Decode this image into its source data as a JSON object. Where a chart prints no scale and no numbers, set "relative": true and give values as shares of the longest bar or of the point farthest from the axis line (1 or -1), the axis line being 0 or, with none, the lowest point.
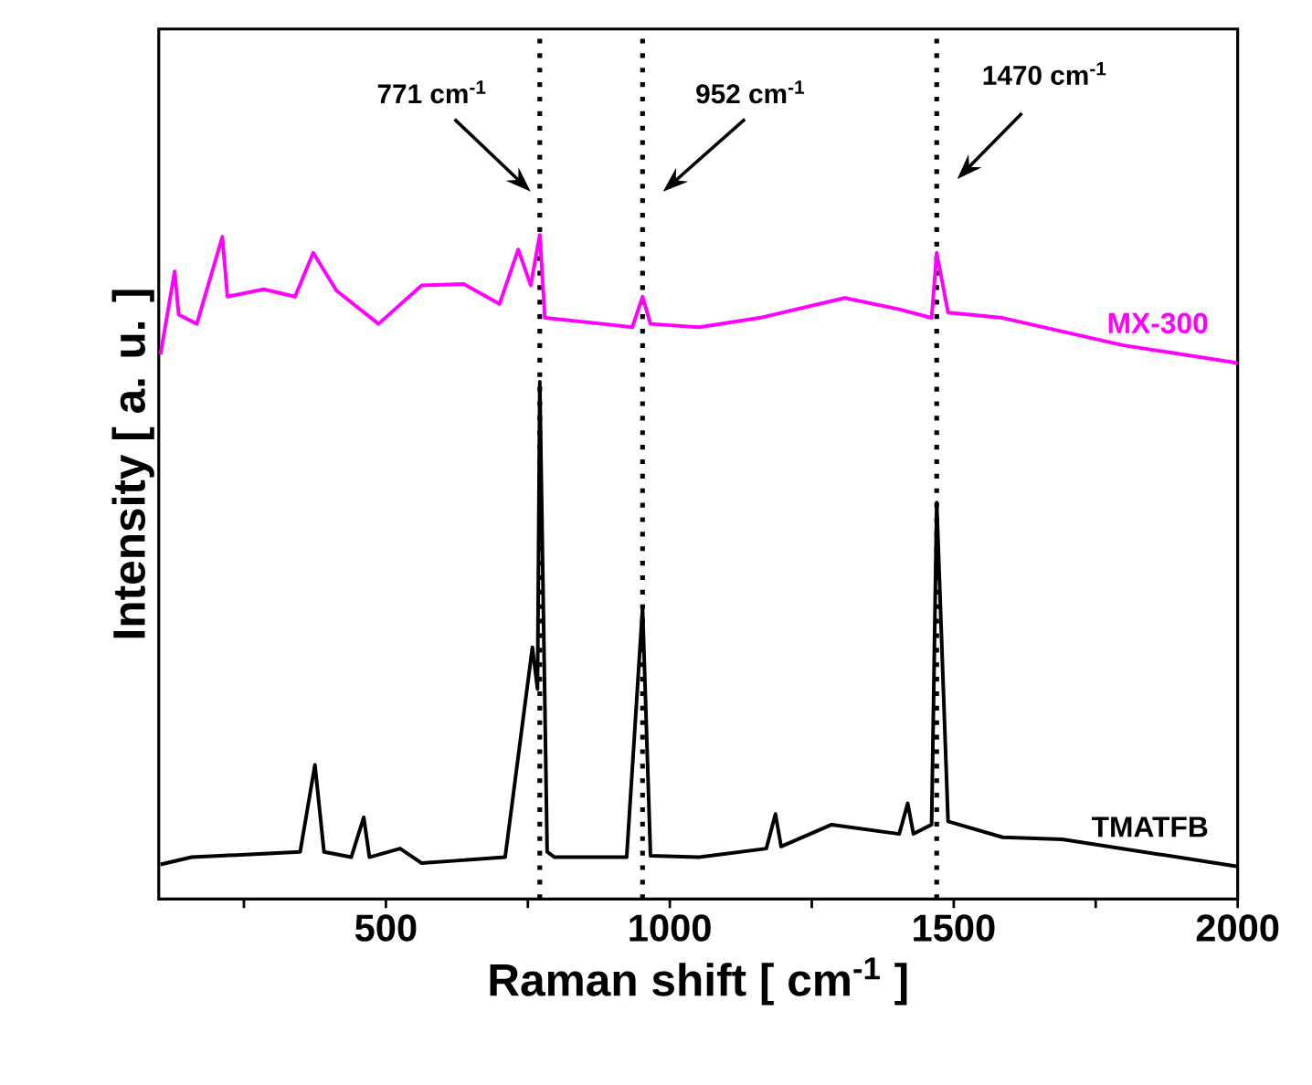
{
  "chart_data": {
    "type": "line",
    "relative": true,
    "xlabel": "Raman shift [ cm$^{-1}$ ]",
    "ylabel": "Intensity [ a. u. ]",
    "xlim": [
      100,
      2000
    ],
    "xticks": [
      {
        "value": 250,
        "label": null
      },
      500,
      {
        "value": 750,
        "label": null
      },
      1000,
      {
        "value": 1250,
        "label": null
      },
      1500,
      {
        "value": 1750,
        "label": null
      },
      2000
    ],
    "ref_lines": [
      {
        "axis": "x",
        "value": 771,
        "label": "771 cm$^{-1}$",
        "line_style": "dotted"
      },
      {
        "axis": "x",
        "value": 952,
        "label": "952 cm$^{-1}$",
        "line_style": "dotted"
      },
      {
        "axis": "x",
        "value": 1470,
        "label": "1470 cm$^{-1}$",
        "line_style": "dotted"
      }
    ],
    "series": [
      {
        "name": "MX-300",
        "color": "#ff00ff",
        "x": [
          103,
          128,
          135,
          167,
          212,
          221,
          285,
          340,
          372,
          413,
          487,
          563,
          637,
          700,
          733,
          755,
          771,
          780,
          882,
          934,
          952,
          966,
          1052,
          1158,
          1308,
          1404,
          1461,
          1470,
          1490,
          1586,
          1797,
          2000
        ],
        "values": [
          0.82,
          0.945,
          0.88,
          0.866,
          0.997,
          0.907,
          0.918,
          0.907,
          0.973,
          0.916,
          0.866,
          0.924,
          0.926,
          0.896,
          0.978,
          0.924,
          1.0,
          0.875,
          0.866,
          0.861,
          0.907,
          0.866,
          0.861,
          0.875,
          0.905,
          0.888,
          0.875,
          0.973,
          0.883,
          0.875,
          0.834,
          0.807
        ]
      },
      {
        "name": "TMATFB",
        "color": "#000000",
        "x": [
          103,
          158,
          349,
          375,
          391,
          439,
          461,
          471,
          525,
          563,
          710,
          758,
          767,
          771,
          784,
          797,
          924,
          952,
          966,
          1052,
          1170,
          1186,
          1196,
          1285,
          1404,
          1419,
          1429,
          1461,
          1470,
          1490,
          1586,
          1691,
          2000
        ],
        "values": [
          0.052,
          0.063,
          0.071,
          0.202,
          0.071,
          0.063,
          0.123,
          0.063,
          0.076,
          0.054,
          0.063,
          0.379,
          0.316,
          0.779,
          0.071,
          0.063,
          0.063,
          0.439,
          0.065,
          0.063,
          0.076,
          0.128,
          0.079,
          0.112,
          0.098,
          0.144,
          0.098,
          0.112,
          0.597,
          0.117,
          0.093,
          0.09,
          0.049
        ]
      }
    ]
  }
}
